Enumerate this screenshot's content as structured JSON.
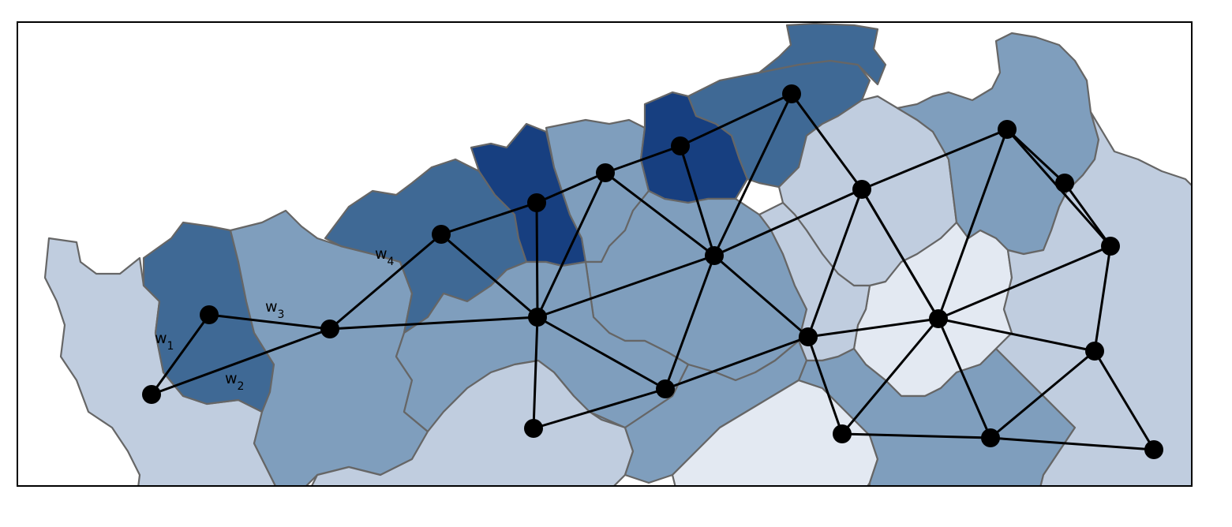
{
  "colors": {
    "level_0": "#e3e9f2",
    "level_1": "#c0cddf",
    "level_2": "#7f9ebd",
    "level_3": "#3f6995",
    "level_4": "#173f80",
    "border": "#666666",
    "graph": "#000000"
  },
  "regions": [
    {
      "id": "r-west-coast",
      "level": 1
    },
    {
      "id": "r-west-upper",
      "level": 3
    },
    {
      "id": "r-west-mid",
      "level": 2
    },
    {
      "id": "r-north-a",
      "level": 3
    },
    {
      "id": "r-north-b",
      "level": 4
    },
    {
      "id": "r-north-c",
      "level": 2
    },
    {
      "id": "r-north-d",
      "level": 4
    },
    {
      "id": "r-north-e",
      "level": 3
    },
    {
      "id": "r-north-top",
      "level": 3
    },
    {
      "id": "r-center",
      "level": 2
    },
    {
      "id": "r-center-b",
      "level": 2
    },
    {
      "id": "r-east-a",
      "level": 1
    },
    {
      "id": "r-east-b",
      "level": 2
    },
    {
      "id": "r-east-c",
      "level": 0
    },
    {
      "id": "r-east-d",
      "level": 1
    },
    {
      "id": "r-south-a",
      "level": 1
    },
    {
      "id": "r-south-b",
      "level": 2
    },
    {
      "id": "r-south-c",
      "level": 0
    },
    {
      "id": "r-south-d",
      "level": 2
    },
    {
      "id": "r-far-east",
      "level": 1
    }
  ],
  "graph": {
    "nodes": [
      {
        "id": "n1"
      },
      {
        "id": "n2"
      },
      {
        "id": "n3"
      },
      {
        "id": "n4"
      },
      {
        "id": "n5"
      },
      {
        "id": "n6"
      },
      {
        "id": "n7"
      },
      {
        "id": "n8"
      },
      {
        "id": "n9"
      },
      {
        "id": "n10"
      },
      {
        "id": "n11"
      },
      {
        "id": "n12"
      },
      {
        "id": "n13"
      },
      {
        "id": "n14"
      },
      {
        "id": "n15"
      },
      {
        "id": "n16"
      },
      {
        "id": "n17"
      },
      {
        "id": "n18"
      },
      {
        "id": "n19"
      },
      {
        "id": "n20"
      },
      {
        "id": "n21"
      },
      {
        "id": "n22"
      }
    ],
    "edges": [
      [
        "n1",
        "n2"
      ],
      [
        "n1",
        "n3"
      ],
      [
        "n2",
        "n3"
      ],
      [
        "n3",
        "n6"
      ],
      [
        "n3",
        "n4"
      ],
      [
        "n4",
        "n5"
      ],
      [
        "n4",
        "n6"
      ],
      [
        "n5",
        "n6"
      ],
      [
        "n5",
        "n7"
      ],
      [
        "n6",
        "n7"
      ],
      [
        "n6",
        "n15"
      ],
      [
        "n6",
        "n16"
      ],
      [
        "n6",
        "n10"
      ],
      [
        "n7",
        "n8"
      ],
      [
        "n7",
        "n10"
      ],
      [
        "n8",
        "n9"
      ],
      [
        "n8",
        "n10"
      ],
      [
        "n9",
        "n10"
      ],
      [
        "n9",
        "n11"
      ],
      [
        "n10",
        "n16"
      ],
      [
        "n10",
        "n12"
      ],
      [
        "n10",
        "n11"
      ],
      [
        "n11",
        "n12"
      ],
      [
        "n11",
        "n17"
      ],
      [
        "n12",
        "n17"
      ],
      [
        "n12",
        "n18"
      ],
      [
        "n12",
        "n14"
      ],
      [
        "n14",
        "n19"
      ],
      [
        "n14",
        "n15"
      ],
      [
        "n15",
        "n16"
      ],
      [
        "n17",
        "n18"
      ],
      [
        "n17",
        "n13"
      ],
      [
        "n17",
        "n19"
      ],
      [
        "n17",
        "n20"
      ],
      [
        "n18",
        "n21"
      ],
      [
        "n13",
        "n21"
      ],
      [
        "n13",
        "n22"
      ],
      [
        "n22",
        "n21"
      ],
      [
        "n21",
        "n20"
      ],
      [
        "n21",
        "n17"
      ],
      [
        "n20",
        "n19"
      ],
      [
        "n20",
        "n23"
      ],
      [
        "n19",
        "n23"
      ]
    ]
  },
  "weight_labels": [
    {
      "base": "w",
      "sub": "1"
    },
    {
      "base": "w",
      "sub": "2"
    },
    {
      "base": "w",
      "sub": "3"
    },
    {
      "base": "w",
      "sub": "4"
    }
  ]
}
